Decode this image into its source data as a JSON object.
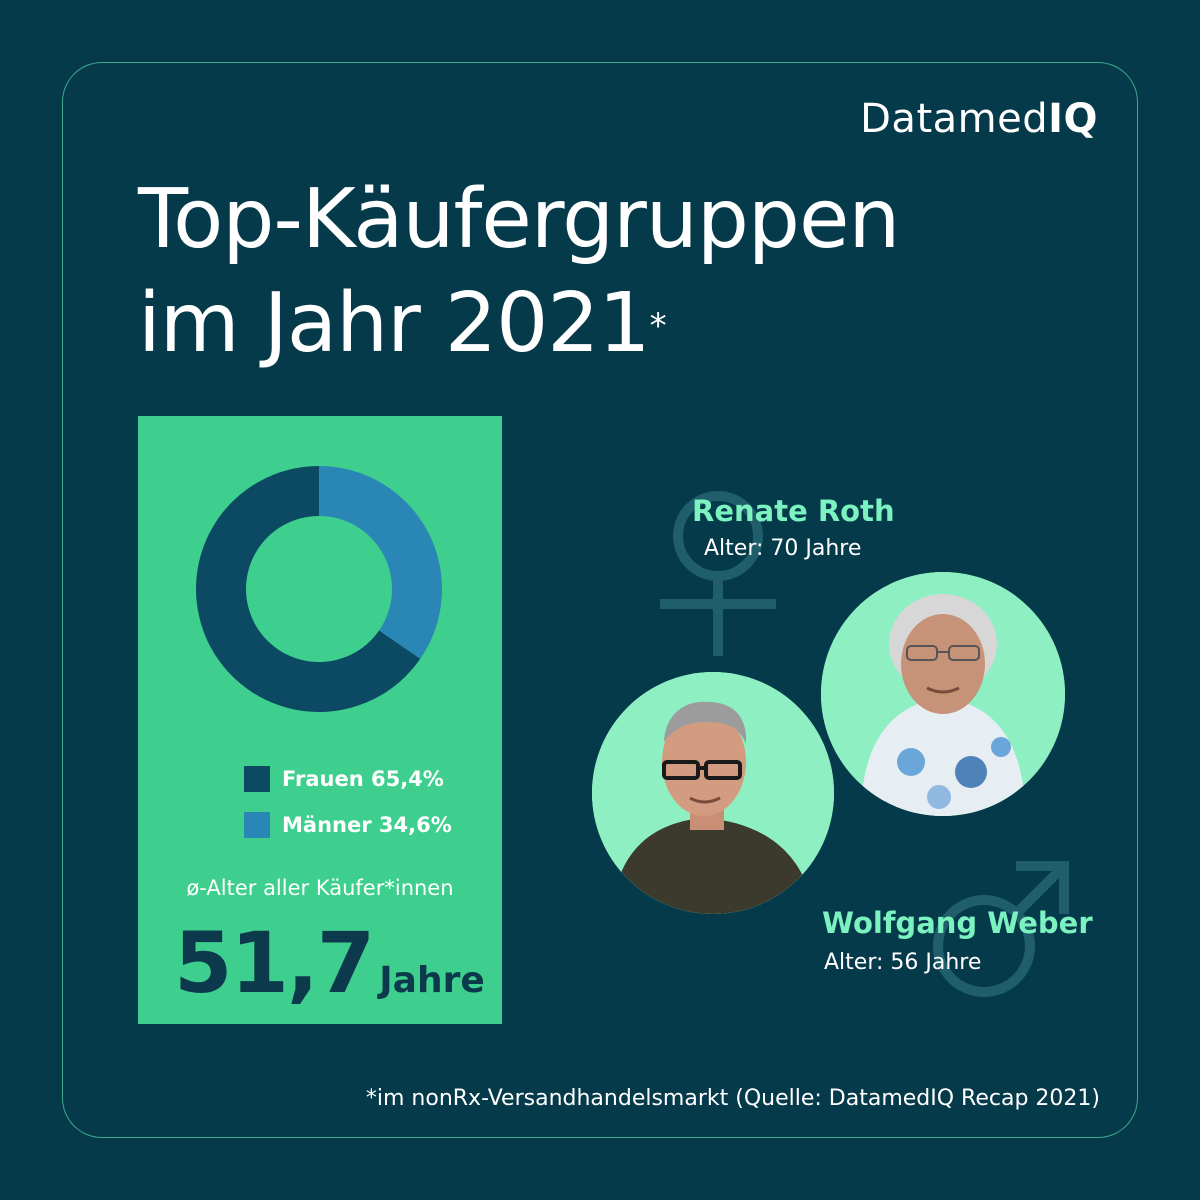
{
  "logo": {
    "text_main": "Datamed",
    "text_iq": "IQ"
  },
  "title": {
    "line1": "Top-Käufergruppen",
    "line2": "im Jahr 2021",
    "asterisk": "*"
  },
  "colors": {
    "background": "#053a4b",
    "panel": "#3ecf8e",
    "frauen": "#0c4a63",
    "maenner": "#2a86b4",
    "accent": "#7cf2c0"
  },
  "chart_data": {
    "type": "pie",
    "variant": "donut",
    "categories": [
      "Frauen",
      "Männer"
    ],
    "values": [
      65.4,
      34.6
    ],
    "unit": "%",
    "legend": [
      "Frauen 65,4%",
      "Männer 34,6%"
    ],
    "legend_position": "bottom"
  },
  "average_age": {
    "label": "ø-Alter aller Käufer*innen",
    "value": "51,7",
    "unit": "Jahre"
  },
  "personas": [
    {
      "name": "Renate Roth",
      "age": "Alter: 70 Jahre",
      "symbol": "female-symbol-icon"
    },
    {
      "name": "Wolfgang Weber",
      "age": "Alter: 56 Jahre",
      "symbol": "male-symbol-icon"
    }
  ],
  "footnote": "*im nonRx-Versandhandelsmarkt (Quelle: DatamedIQ Recap 2021)"
}
